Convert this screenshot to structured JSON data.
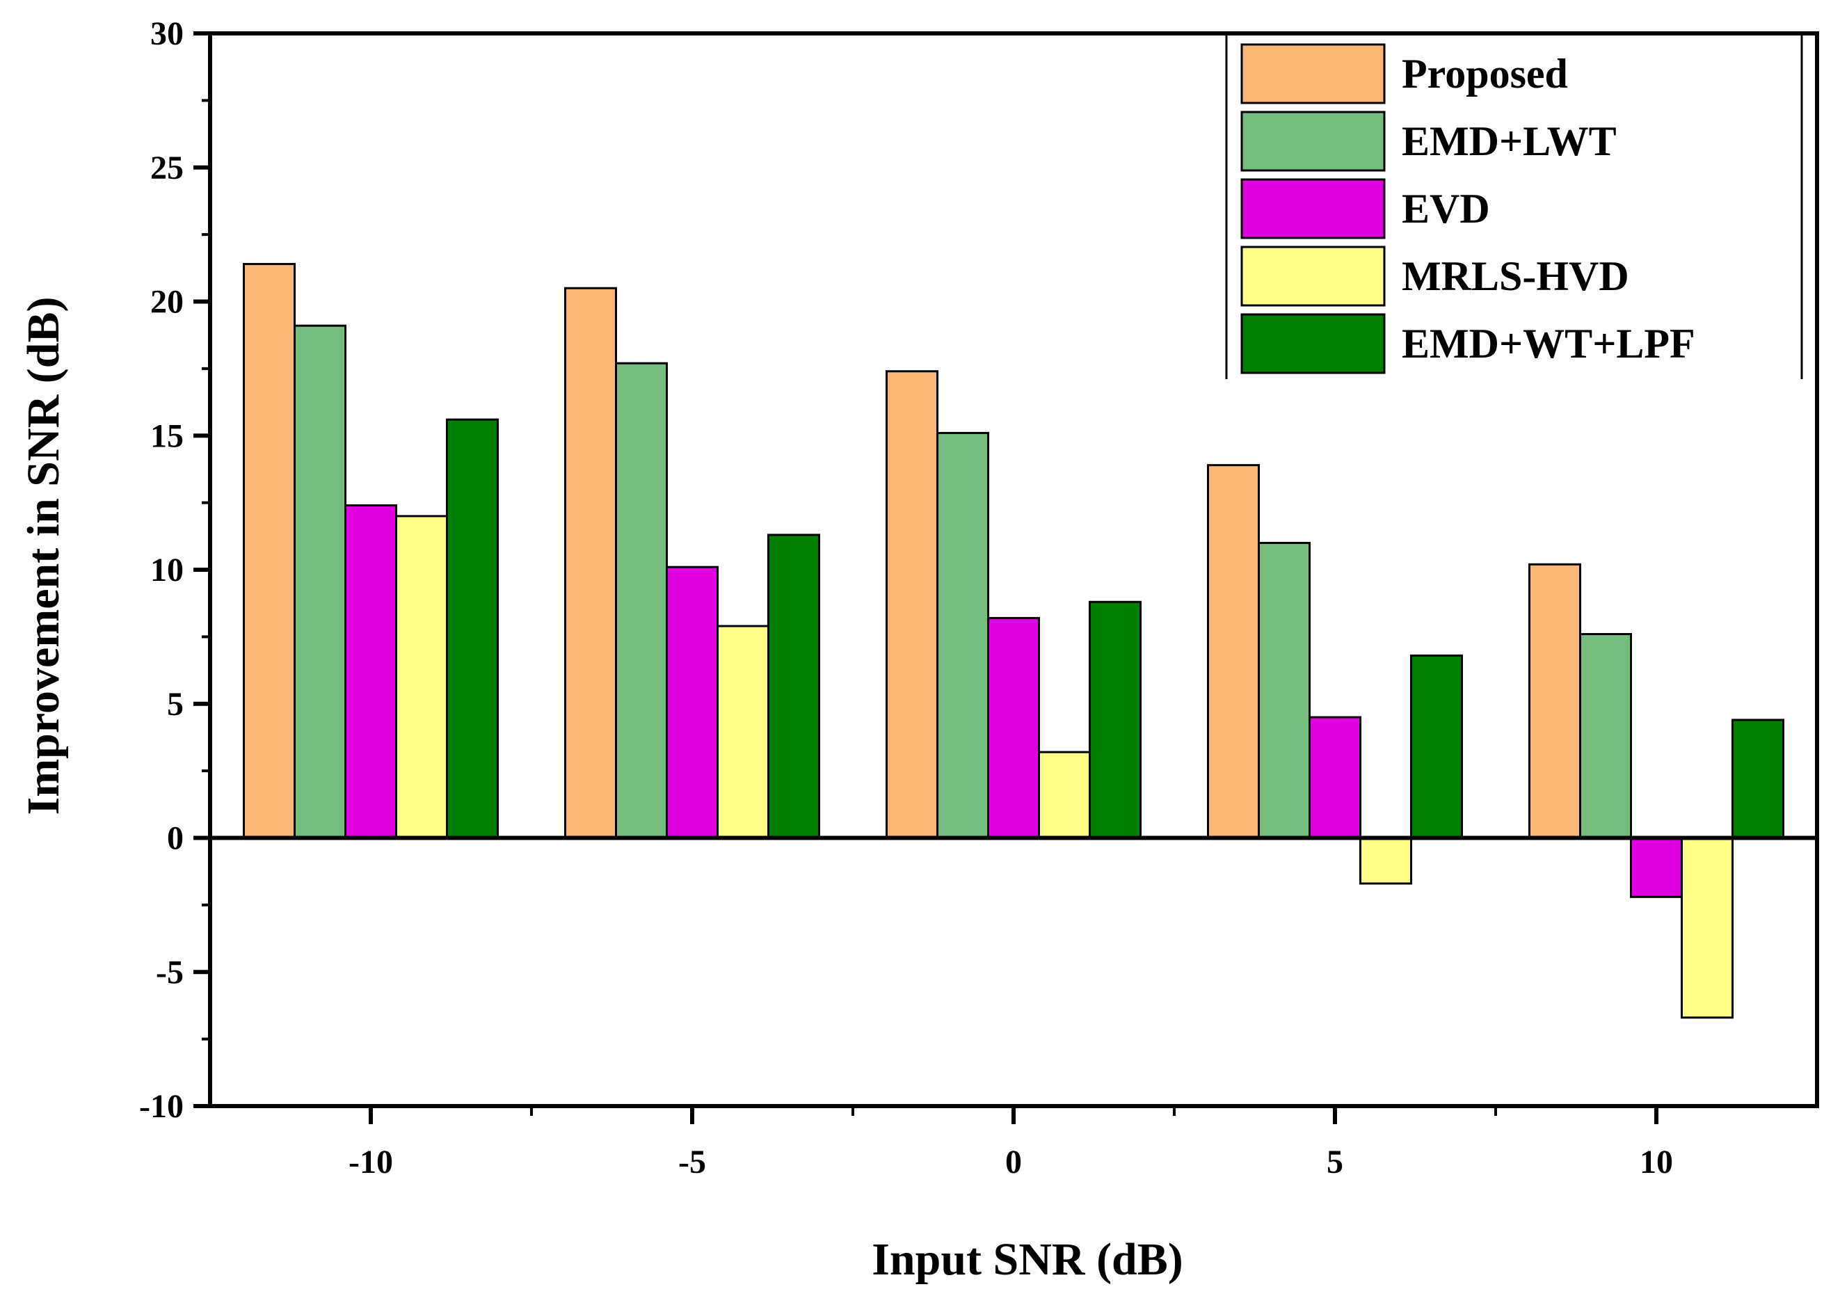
{
  "chart_data": {
    "type": "bar",
    "xlabel": "Input SNR (dB)",
    "ylabel": "Improvement in SNR (dB)",
    "categories": [
      "-10",
      "-5",
      "0",
      "5",
      "10"
    ],
    "ylim": [
      -10,
      30
    ],
    "yticks": [
      "-10",
      "-5",
      "0",
      "5",
      "10",
      "15",
      "20",
      "25",
      "30"
    ],
    "grid": false,
    "legend_position": "top-right",
    "series": [
      {
        "name": "Proposed",
        "color": "#FDB878",
        "values": [
          21.4,
          20.5,
          17.4,
          13.9,
          10.2
        ]
      },
      {
        "name": "EMD+LWT",
        "color": "#74BE7E",
        "values": [
          19.1,
          17.7,
          15.1,
          11.0,
          7.6
        ]
      },
      {
        "name": "EVD",
        "color": "#E000E0",
        "values": [
          12.4,
          10.1,
          8.2,
          4.5,
          -2.2
        ]
      },
      {
        "name": "MRLS-HVD",
        "color": "#FFFF88",
        "values": [
          12.0,
          7.9,
          3.2,
          -1.7,
          -6.7
        ]
      },
      {
        "name": "EMD+WT+LPF",
        "color": "#008000",
        "values": [
          15.6,
          11.3,
          8.8,
          6.8,
          4.4
        ]
      }
    ]
  }
}
